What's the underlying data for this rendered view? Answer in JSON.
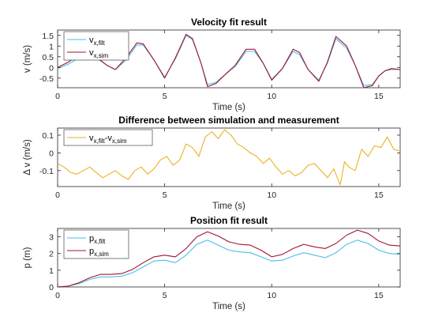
{
  "chart_data": [
    {
      "type": "line",
      "title": "Velocity fit result",
      "xlabel": "Time (s)",
      "ylabel": "v (m/s)",
      "xlim": [
        0,
        16
      ],
      "ylim": [
        -0.95,
        1.75
      ],
      "xticks": [
        0,
        5,
        10,
        15
      ],
      "yticks": [
        -0.5,
        0,
        0.5,
        1,
        1.5
      ],
      "ytick_labels": [
        "-0.5",
        "0",
        "0.5",
        "1",
        "1.5"
      ],
      "grid": false,
      "legend_position": "top-left",
      "series": [
        {
          "name": "v",
          "name_sub": "x,filt",
          "color": "#4DBEEE",
          "x": [
            0,
            0.5,
            1.0,
            1.4,
            1.8,
            2.3,
            2.7,
            3.2,
            3.7,
            4.0,
            4.5,
            5.0,
            5.5,
            6.0,
            6.3,
            6.7,
            7.0,
            7.4,
            7.8,
            8.3,
            8.8,
            9.2,
            9.6,
            10.0,
            10.5,
            11.0,
            11.3,
            11.7,
            12.2,
            12.6,
            13.0,
            13.5,
            13.9,
            14.3,
            14.7,
            15.0,
            15.3,
            15.6,
            16.0
          ],
          "y": [
            -0.05,
            0.15,
            0.45,
            0.55,
            0.45,
            0.1,
            -0.1,
            0.35,
            1.05,
            1.05,
            0.35,
            -0.45,
            0.4,
            1.5,
            1.3,
            0.2,
            -0.8,
            -0.7,
            -0.35,
            0.05,
            0.75,
            0.75,
            0.2,
            -0.55,
            -0.05,
            0.75,
            0.6,
            -0.1,
            -0.6,
            0.2,
            1.35,
            0.9,
            0.1,
            -0.85,
            -0.8,
            -0.4,
            -0.15,
            -0.1,
            -0.1
          ]
        },
        {
          "name": "v",
          "name_sub": "x,sim",
          "color": "#A2142F",
          "x": [
            0,
            0.5,
            1.0,
            1.4,
            1.8,
            2.3,
            2.7,
            3.2,
            3.7,
            4.0,
            4.5,
            5.0,
            5.5,
            6.0,
            6.3,
            6.7,
            7.0,
            7.4,
            7.8,
            8.3,
            8.8,
            9.2,
            9.6,
            10.0,
            10.5,
            11.0,
            11.3,
            11.7,
            12.2,
            12.6,
            13.0,
            13.5,
            13.9,
            14.3,
            14.7,
            15.0,
            15.3,
            15.6,
            16.0
          ],
          "y": [
            0.0,
            0.25,
            0.6,
            0.65,
            0.5,
            0.1,
            -0.1,
            0.45,
            1.15,
            1.1,
            0.35,
            -0.5,
            0.45,
            1.55,
            1.35,
            0.2,
            -0.9,
            -0.75,
            -0.35,
            0.1,
            0.85,
            0.85,
            0.2,
            -0.6,
            -0.05,
            0.85,
            0.7,
            -0.1,
            -0.65,
            0.25,
            1.45,
            1.0,
            0.1,
            -0.95,
            -0.85,
            -0.4,
            -0.15,
            -0.05,
            -0.1
          ]
        }
      ]
    },
    {
      "type": "line",
      "title": "Difference between simulation and measurement",
      "xlabel": "Time (s)",
      "ylabel": "Δ v (m/s)",
      "xlim": [
        0,
        16
      ],
      "ylim": [
        -0.19,
        0.14
      ],
      "xticks": [
        0,
        5,
        10,
        15
      ],
      "yticks": [
        -0.1,
        0,
        0.1
      ],
      "ytick_labels": [
        "-0.1",
        "0",
        "0.1"
      ],
      "grid": false,
      "legend_position": "top-left",
      "series": [
        {
          "name": "v",
          "name_sub": "x,filt",
          "name_mid": "-v",
          "name_sub2": "x,sim",
          "color": "#EDB120",
          "x": [
            0,
            0.3,
            0.6,
            0.9,
            1.2,
            1.5,
            1.8,
            2.1,
            2.4,
            2.7,
            3.0,
            3.3,
            3.6,
            3.9,
            4.2,
            4.5,
            4.8,
            5.1,
            5.4,
            5.7,
            6.0,
            6.3,
            6.6,
            6.9,
            7.2,
            7.5,
            7.8,
            8.1,
            8.4,
            8.7,
            9.0,
            9.3,
            9.6,
            9.9,
            10.2,
            10.5,
            10.8,
            11.1,
            11.4,
            11.7,
            12.0,
            12.3,
            12.6,
            12.9,
            13.2,
            13.4,
            13.6,
            13.9,
            14.2,
            14.5,
            14.8,
            15.1,
            15.4,
            15.7,
            16.0
          ],
          "y": [
            -0.06,
            -0.08,
            -0.11,
            -0.12,
            -0.1,
            -0.08,
            -0.11,
            -0.14,
            -0.12,
            -0.1,
            -0.13,
            -0.15,
            -0.1,
            -0.08,
            -0.12,
            -0.09,
            -0.04,
            -0.02,
            -0.07,
            -0.04,
            0.05,
            0.03,
            -0.02,
            0.09,
            0.12,
            0.08,
            0.13,
            0.1,
            0.05,
            0.03,
            0.0,
            -0.02,
            -0.06,
            -0.03,
            -0.08,
            -0.12,
            -0.1,
            -0.13,
            -0.11,
            -0.07,
            -0.06,
            -0.1,
            -0.14,
            -0.09,
            -0.18,
            -0.05,
            -0.08,
            -0.1,
            0.02,
            -0.02,
            0.04,
            0.03,
            0.09,
            0.02,
            0.01
          ]
        }
      ]
    },
    {
      "type": "line",
      "title": "Position fit result",
      "xlabel": "Time (s)",
      "ylabel": "p (m)",
      "xlim": [
        0,
        16
      ],
      "ylim": [
        0,
        3.5
      ],
      "xticks": [
        0,
        5,
        10,
        15
      ],
      "yticks": [
        0,
        1,
        2,
        3
      ],
      "ytick_labels": [
        "0",
        "1",
        "2",
        "3"
      ],
      "grid": false,
      "legend_position": "top-left",
      "series": [
        {
          "name": "p",
          "name_sub": "x,filt",
          "color": "#4DBEEE",
          "x": [
            0,
            0.5,
            1.0,
            1.5,
            2.0,
            2.5,
            3.0,
            3.5,
            4.0,
            4.5,
            5.0,
            5.5,
            6.0,
            6.5,
            7.0,
            7.5,
            8.0,
            8.5,
            9.0,
            9.5,
            10.0,
            10.5,
            11.0,
            11.5,
            12.0,
            12.5,
            13.0,
            13.5,
            14.0,
            14.5,
            15.0,
            15.5,
            16.0
          ],
          "y": [
            0.0,
            0.05,
            0.2,
            0.45,
            0.6,
            0.6,
            0.65,
            0.85,
            1.2,
            1.55,
            1.6,
            1.45,
            1.9,
            2.55,
            2.8,
            2.5,
            2.2,
            2.1,
            2.05,
            1.8,
            1.55,
            1.6,
            1.85,
            2.05,
            1.9,
            1.75,
            2.05,
            2.55,
            2.8,
            2.6,
            2.2,
            2.0,
            1.95
          ]
        },
        {
          "name": "p",
          "name_sub": "x,sim",
          "color": "#A2142F",
          "x": [
            0,
            0.5,
            1.0,
            1.5,
            2.0,
            2.5,
            3.0,
            3.5,
            4.0,
            4.5,
            5.0,
            5.5,
            6.0,
            6.5,
            7.0,
            7.5,
            8.0,
            8.5,
            9.0,
            9.5,
            10.0,
            10.5,
            11.0,
            11.5,
            12.0,
            12.5,
            13.0,
            13.5,
            14.0,
            14.5,
            15.0,
            15.5,
            16.0
          ],
          "y": [
            0.0,
            0.05,
            0.25,
            0.55,
            0.75,
            0.75,
            0.8,
            1.05,
            1.45,
            1.8,
            1.9,
            1.8,
            2.3,
            3.0,
            3.3,
            3.05,
            2.7,
            2.55,
            2.5,
            2.2,
            1.8,
            1.95,
            2.3,
            2.55,
            2.4,
            2.3,
            2.6,
            3.1,
            3.4,
            3.2,
            2.75,
            2.5,
            2.45
          ]
        }
      ]
    }
  ]
}
